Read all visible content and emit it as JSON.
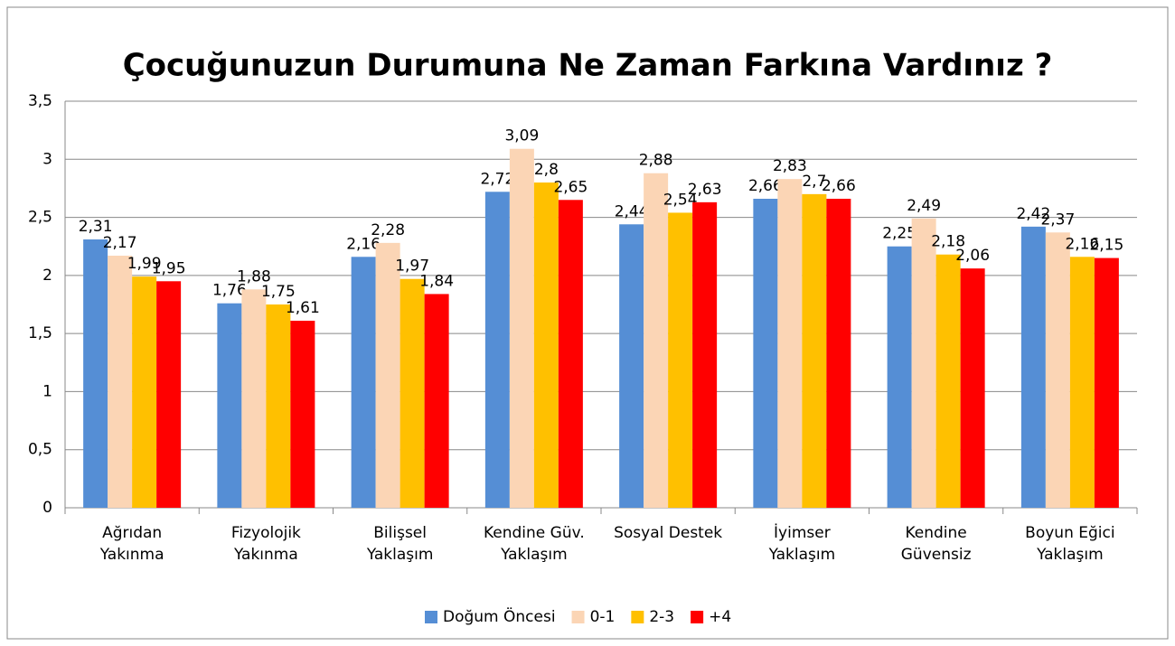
{
  "chart_data": {
    "type": "bar",
    "title": "Çocuğunuzun Durumuna Ne Zaman Farkına Vardınız ?",
    "categories": [
      "Ağrıdan\nYakınma",
      "Fizyolojik\nYakınma",
      "Bilişsel\nYaklaşım",
      "Kendine Güv.\nYaklaşım",
      "Sosyal Destek",
      "İyimser\nYaklaşım",
      "Kendine\nGüvensiz",
      "Boyun Eğici\nYaklaşım"
    ],
    "series": [
      {
        "name": "Doğum Öncesi",
        "color": "#558ed5",
        "values": [
          2.31,
          1.76,
          2.16,
          2.72,
          2.44,
          2.66,
          2.25,
          2.42
        ],
        "value_labels": [
          "2,31",
          "1,76",
          "2,16",
          "2,72",
          "2,44",
          "2,66",
          "2,25",
          "2,42"
        ]
      },
      {
        "name": "0-1",
        "color": "#fbd5b5",
        "values": [
          2.17,
          1.88,
          2.28,
          3.09,
          2.88,
          2.83,
          2.49,
          2.37
        ],
        "value_labels": [
          "2,17",
          "1,88",
          "2,28",
          "3,09",
          "2,88",
          "2,83",
          "2,49",
          "2,37"
        ]
      },
      {
        "name": "2-3",
        "color": "#ffc000",
        "values": [
          1.99,
          1.75,
          1.97,
          2.8,
          2.54,
          2.7,
          2.18,
          2.16
        ],
        "value_labels": [
          "1,99",
          "1,75",
          "1,97",
          "2,8",
          "2,54",
          "2,7",
          "2,18",
          "2,16"
        ]
      },
      {
        "name": "+4",
        "color": "#ff0000",
        "values": [
          1.95,
          1.61,
          1.84,
          2.65,
          2.63,
          2.66,
          2.06,
          2.15
        ],
        "value_labels": [
          "1,95",
          "1,61",
          "1,84",
          "2,65",
          "2,63",
          "2,66",
          "2,06",
          "2,15"
        ]
      }
    ],
    "ylim": [
      0,
      3.5
    ],
    "yticks": [
      0,
      {
        "value": 0.5,
        "label": "0,5"
      },
      1,
      {
        "value": 1.5,
        "label": "1,5"
      },
      2,
      {
        "value": 2.5,
        "label": "2,5"
      },
      3,
      {
        "value": 3.5,
        "label": "3,5"
      }
    ],
    "grid": true,
    "legend": "bottom"
  }
}
